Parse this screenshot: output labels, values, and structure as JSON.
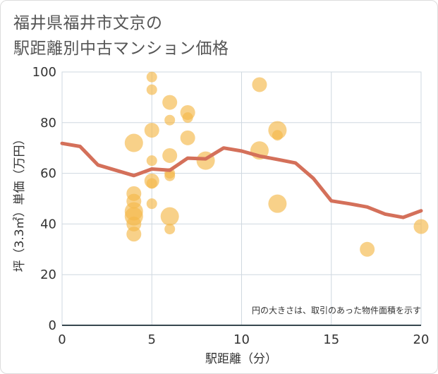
{
  "title_line1": "福井県福井市文京の",
  "title_line2": "駅距離別中古マンション価格",
  "colors": {
    "bubble": "#f5b94a",
    "line": "#d4705a",
    "grid": "#cfd8e0",
    "axis": "#37474f"
  },
  "chart_data": {
    "type": "scatter",
    "xlabel": "駅距離（分）",
    "ylabel": "坪（3.3㎡）単価（万円）",
    "xlim": [
      0,
      20
    ],
    "ylim": [
      0,
      100
    ],
    "x_ticks": [
      "0",
      "5",
      "10",
      "15",
      "20"
    ],
    "y_ticks": [
      "0",
      "20",
      "40",
      "60",
      "80",
      "100"
    ],
    "grid": true,
    "annotation": "円の大きさは、取引のあった物件面積を示す",
    "bubbles": [
      {
        "x": 4,
        "y": 72,
        "size": 3
      },
      {
        "x": 4,
        "y": 52,
        "size": 2
      },
      {
        "x": 4,
        "y": 49,
        "size": 2
      },
      {
        "x": 4,
        "y": 45,
        "size": 3
      },
      {
        "x": 4,
        "y": 43,
        "size": 3
      },
      {
        "x": 4,
        "y": 40,
        "size": 2
      },
      {
        "x": 4,
        "y": 36,
        "size": 2
      },
      {
        "x": 5,
        "y": 98,
        "size": 1
      },
      {
        "x": 5,
        "y": 93,
        "size": 1
      },
      {
        "x": 5,
        "y": 77,
        "size": 2
      },
      {
        "x": 5,
        "y": 65,
        "size": 1
      },
      {
        "x": 5,
        "y": 57,
        "size": 2
      },
      {
        "x": 5,
        "y": 56,
        "size": 1
      },
      {
        "x": 5,
        "y": 48,
        "size": 1
      },
      {
        "x": 6,
        "y": 88,
        "size": 2
      },
      {
        "x": 6,
        "y": 81,
        "size": 1
      },
      {
        "x": 6,
        "y": 67,
        "size": 2
      },
      {
        "x": 6,
        "y": 60,
        "size": 1
      },
      {
        "x": 6,
        "y": 59,
        "size": 1
      },
      {
        "x": 6,
        "y": 43,
        "size": 3
      },
      {
        "x": 6,
        "y": 38,
        "size": 1
      },
      {
        "x": 7,
        "y": 84,
        "size": 2
      },
      {
        "x": 7,
        "y": 82,
        "size": 1
      },
      {
        "x": 7,
        "y": 74,
        "size": 2
      },
      {
        "x": 8,
        "y": 65,
        "size": 3
      },
      {
        "x": 11,
        "y": 95,
        "size": 2
      },
      {
        "x": 11,
        "y": 69,
        "size": 3
      },
      {
        "x": 12,
        "y": 77,
        "size": 3
      },
      {
        "x": 12,
        "y": 75,
        "size": 1
      },
      {
        "x": 12,
        "y": 48,
        "size": 3
      },
      {
        "x": 17,
        "y": 30,
        "size": 2
      },
      {
        "x": 20,
        "y": 39,
        "size": 2
      }
    ],
    "series": [
      {
        "type": "line",
        "x": [
          0,
          1,
          2,
          3,
          4,
          5,
          6,
          7,
          8,
          9,
          10,
          11,
          12,
          13,
          14,
          15,
          16,
          17,
          18,
          19,
          20
        ],
        "values": [
          71.8,
          70.6,
          63.3,
          61.2,
          59.1,
          61.7,
          61.2,
          66.0,
          65.7,
          70.0,
          68.8,
          66.8,
          65.5,
          64.1,
          58.0,
          49.1,
          48.0,
          46.7,
          43.9,
          42.6,
          45.2
        ]
      }
    ]
  }
}
